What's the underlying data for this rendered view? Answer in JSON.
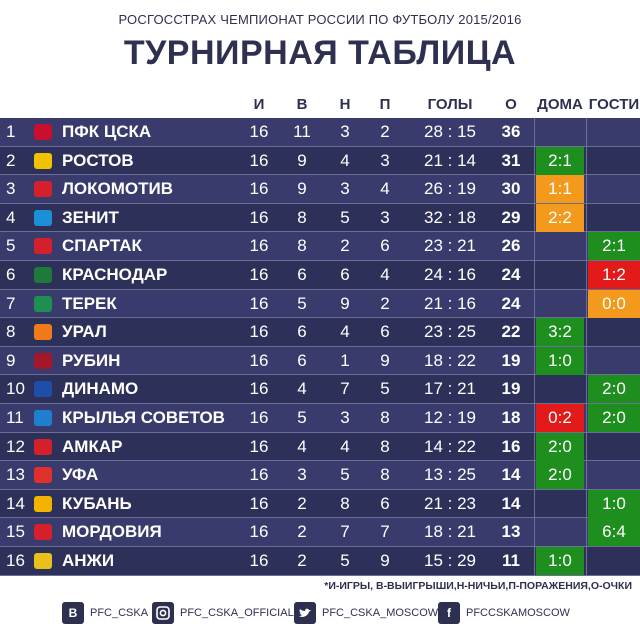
{
  "header": {
    "subtitle": "РОСГОССТРАХ ЧЕМПИОНАТ РОССИИ ПО ФУТБОЛУ 2015/2016",
    "title": "ТУРНИРНАЯ ТАБЛИЦА"
  },
  "columns": {
    "games": "И",
    "wins": "В",
    "draws": "Н",
    "losses": "П",
    "goals": "ГОЛЫ",
    "points": "О",
    "home": "ДОМА",
    "away": "ГОСТИ"
  },
  "rows": [
    {
      "pos": "1",
      "team": "ПФК ЦСКА",
      "logo_color": "#c8102e",
      "g": "16",
      "w": "11",
      "d": "3",
      "l": "2",
      "goals": "28 : 15",
      "pts": "36",
      "home": "",
      "home_type": "",
      "away": "",
      "away_type": ""
    },
    {
      "pos": "2",
      "team": "РОСТОВ",
      "logo_color": "#f2c200",
      "g": "16",
      "w": "9",
      "d": "4",
      "l": "3",
      "goals": "21 : 14",
      "pts": "31",
      "home": "2:1",
      "home_type": "win",
      "away": "",
      "away_type": ""
    },
    {
      "pos": "3",
      "team": "ЛОКОМОТИВ",
      "logo_color": "#d4202a",
      "g": "16",
      "w": "9",
      "d": "3",
      "l": "4",
      "goals": "26 : 19",
      "pts": "30",
      "home": "1:1",
      "home_type": "draw",
      "away": "",
      "away_type": ""
    },
    {
      "pos": "4",
      "team": "ЗЕНИТ",
      "logo_color": "#1d8fd6",
      "g": "16",
      "w": "8",
      "d": "5",
      "l": "3",
      "goals": "32 : 18",
      "pts": "29",
      "home": "2:2",
      "home_type": "draw",
      "away": "",
      "away_type": ""
    },
    {
      "pos": "5",
      "team": "СПАРТАК",
      "logo_color": "#d4202a",
      "g": "16",
      "w": "8",
      "d": "2",
      "l": "6",
      "goals": "23 : 21",
      "pts": "26",
      "home": "",
      "home_type": "",
      "away": "2:1",
      "away_type": "win"
    },
    {
      "pos": "6",
      "team": "КРАСНОДАР",
      "logo_color": "#1e7a3a",
      "g": "16",
      "w": "6",
      "d": "6",
      "l": "4",
      "goals": "24 : 16",
      "pts": "24",
      "home": "",
      "home_type": "",
      "away": "1:2",
      "away_type": "loss"
    },
    {
      "pos": "7",
      "team": "ТЕРЕК",
      "logo_color": "#1e8f4e",
      "g": "16",
      "w": "5",
      "d": "9",
      "l": "2",
      "goals": "21 : 16",
      "pts": "24",
      "home": "",
      "home_type": "",
      "away": "0:0",
      "away_type": "draw"
    },
    {
      "pos": "8",
      "team": "УРАЛ",
      "logo_color": "#f07a1a",
      "g": "16",
      "w": "6",
      "d": "4",
      "l": "6",
      "goals": "23 : 25",
      "pts": "22",
      "home": "3:2",
      "home_type": "win",
      "away": "",
      "away_type": ""
    },
    {
      "pos": "9",
      "team": "РУБИН",
      "logo_color": "#a4162a",
      "g": "16",
      "w": "6",
      "d": "1",
      "l": "9",
      "goals": "18 : 22",
      "pts": "19",
      "home": "1:0",
      "home_type": "win",
      "away": "",
      "away_type": ""
    },
    {
      "pos": "10",
      "team": "ДИНАМО",
      "logo_color": "#1e4fa8",
      "g": "16",
      "w": "4",
      "d": "7",
      "l": "5",
      "goals": "17 : 21",
      "pts": "19",
      "home": "",
      "home_type": "",
      "away": "2:0",
      "away_type": "win"
    },
    {
      "pos": "11",
      "team": "КРЫЛЬЯ СОВЕТОВ",
      "logo_color": "#1f7fcf",
      "g": "16",
      "w": "5",
      "d": "3",
      "l": "8",
      "goals": "12 : 19",
      "pts": "18",
      "home": "0:2",
      "home_type": "loss",
      "away": "2:0",
      "away_type": "win"
    },
    {
      "pos": "12",
      "team": "АМКАР",
      "logo_color": "#d4202a",
      "g": "16",
      "w": "4",
      "d": "4",
      "l": "8",
      "goals": "14 : 22",
      "pts": "16",
      "home": "2:0",
      "home_type": "win",
      "away": "",
      "away_type": ""
    },
    {
      "pos": "13",
      "team": "УФА",
      "logo_color": "#e0302a",
      "g": "16",
      "w": "3",
      "d": "5",
      "l": "8",
      "goals": "13 : 25",
      "pts": "14",
      "home": "2:0",
      "home_type": "win",
      "away": "",
      "away_type": ""
    },
    {
      "pos": "14",
      "team": "КУБАНЬ",
      "logo_color": "#f2b400",
      "g": "16",
      "w": "2",
      "d": "8",
      "l": "6",
      "goals": "21 : 23",
      "pts": "14",
      "home": "",
      "home_type": "",
      "away": "1:0",
      "away_type": "win"
    },
    {
      "pos": "15",
      "team": "МОРДОВИЯ",
      "logo_color": "#d4202a",
      "g": "16",
      "w": "2",
      "d": "7",
      "l": "7",
      "goals": "18 : 21",
      "pts": "13",
      "home": "",
      "home_type": "",
      "away": "6:4",
      "away_type": "win"
    },
    {
      "pos": "16",
      "team": "АНЖИ",
      "logo_color": "#e8c21a",
      "g": "16",
      "w": "2",
      "d": "5",
      "l": "9",
      "goals": "15 : 29",
      "pts": "11",
      "home": "1:0",
      "home_type": "win",
      "away": "",
      "away_type": ""
    }
  ],
  "legend": "*И-ИГРЫ, В-ВЫИГРЫШИ,Н-НИЧЬИ,П-ПОРАЖЕНИЯ,О-ОЧКИ",
  "footer": {
    "vk_icon": "В",
    "vk": "PFC_CSKA",
    "instagram": "PFC_CSKA_OFFICIAL",
    "twitter": "PFC_CSKA_MOSCOW",
    "facebook_icon": "f",
    "facebook": "PFCCSKAMOSCOW"
  },
  "colors": {
    "row_odd": "#383b6b",
    "row_even": "#2d3058",
    "win": "#1e8f1e",
    "draw": "#f39a1c",
    "loss": "#e21a1a"
  }
}
